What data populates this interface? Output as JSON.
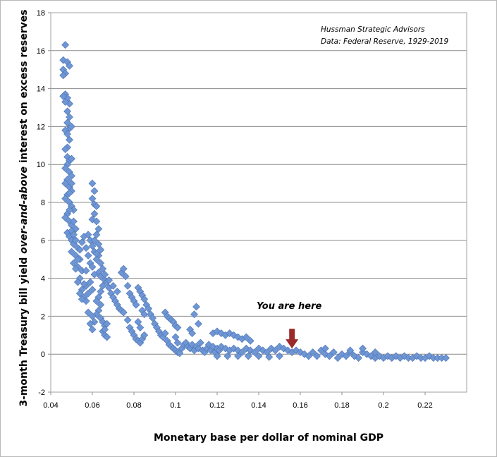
{
  "chart_data": {
    "type": "scatter",
    "source_lines": [
      "Hussman  Strategic Advisors",
      "Data: Federal Reserve,  1929-2019"
    ],
    "xlabel": "Monetary base per dollar of nominal GDP",
    "ylabel_parts": [
      "3-month Treasury bill yield ",
      "over-and-above",
      " interest on excess reserves"
    ],
    "xlim": [
      0.04,
      0.24
    ],
    "ylim": [
      -2,
      18
    ],
    "x_ticks": [
      "0.04",
      "0.06",
      "0.08",
      "0.1",
      "0.12",
      "0.14",
      "0.16",
      "0.18",
      "0.2",
      "0.22"
    ],
    "y_ticks": [
      "-2",
      "0",
      "2",
      "4",
      "6",
      "8",
      "10",
      "12",
      "14",
      "16",
      "18"
    ],
    "grid": "horizontal",
    "marker_color": "#6f96d4",
    "marker_stroke": "#4a72b5",
    "annotation": {
      "text": "You are here",
      "arrow_color": "#9c2a2a",
      "x": 0.156,
      "y": 0.15
    },
    "points": [
      [
        0.047,
        16.3
      ],
      [
        0.046,
        15.5
      ],
      [
        0.048,
        15.4
      ],
      [
        0.049,
        15.2
      ],
      [
        0.046,
        15.0
      ],
      [
        0.047,
        14.8
      ],
      [
        0.046,
        14.7
      ],
      [
        0.047,
        13.7
      ],
      [
        0.048,
        13.5
      ],
      [
        0.046,
        13.6
      ],
      [
        0.049,
        13.2
      ],
      [
        0.047,
        13.3
      ],
      [
        0.048,
        12.8
      ],
      [
        0.049,
        12.5
      ],
      [
        0.048,
        12.2
      ],
      [
        0.049,
        11.9
      ],
      [
        0.047,
        11.8
      ],
      [
        0.05,
        12.0
      ],
      [
        0.048,
        11.6
      ],
      [
        0.049,
        11.3
      ],
      [
        0.048,
        10.9
      ],
      [
        0.047,
        10.8
      ],
      [
        0.048,
        10.4
      ],
      [
        0.049,
        10.2
      ],
      [
        0.05,
        10.3
      ],
      [
        0.048,
        10.0
      ],
      [
        0.047,
        9.8
      ],
      [
        0.049,
        9.6
      ],
      [
        0.05,
        9.4
      ],
      [
        0.048,
        9.2
      ],
      [
        0.047,
        9.0
      ],
      [
        0.049,
        8.8
      ],
      [
        0.05,
        8.6
      ],
      [
        0.048,
        8.4
      ],
      [
        0.047,
        8.2
      ],
      [
        0.049,
        8.0
      ],
      [
        0.05,
        7.8
      ],
      [
        0.051,
        7.6
      ],
      [
        0.048,
        7.4
      ],
      [
        0.047,
        7.2
      ],
      [
        0.049,
        7.0
      ],
      [
        0.05,
        6.8
      ],
      [
        0.052,
        6.6
      ],
      [
        0.048,
        6.4
      ],
      [
        0.049,
        6.2
      ],
      [
        0.05,
        6.0
      ],
      [
        0.051,
        5.8
      ],
      [
        0.053,
        5.6
      ],
      [
        0.05,
        5.4
      ],
      [
        0.052,
        5.2
      ],
      [
        0.054,
        5.0
      ],
      [
        0.051,
        4.8
      ],
      [
        0.053,
        4.6
      ],
      [
        0.055,
        4.4
      ],
      [
        0.054,
        4.0
      ],
      [
        0.053,
        3.8
      ],
      [
        0.055,
        3.4
      ],
      [
        0.054,
        3.2
      ],
      [
        0.056,
        3.0
      ],
      [
        0.057,
        2.8
      ],
      [
        0.055,
        2.9
      ],
      [
        0.058,
        3.2
      ],
      [
        0.057,
        3.6
      ],
      [
        0.049,
        8.5
      ],
      [
        0.05,
        9.0
      ],
      [
        0.049,
        7.6
      ],
      [
        0.051,
        7.0
      ],
      [
        0.05,
        6.5
      ],
      [
        0.052,
        6.0
      ],
      [
        0.051,
        6.3
      ],
      [
        0.053,
        5.0
      ],
      [
        0.052,
        4.5
      ],
      [
        0.056,
        3.7
      ],
      [
        0.054,
        5.5
      ],
      [
        0.055,
        5.9
      ],
      [
        0.056,
        6.2
      ],
      [
        0.057,
        5.6
      ],
      [
        0.058,
        5.2
      ],
      [
        0.059,
        4.8
      ],
      [
        0.057,
        4.4
      ],
      [
        0.058,
        6.3
      ],
      [
        0.059,
        6.0
      ],
      [
        0.06,
        5.7
      ],
      [
        0.061,
        5.4
      ],
      [
        0.06,
        9.0
      ],
      [
        0.061,
        8.6
      ],
      [
        0.06,
        8.2
      ],
      [
        0.061,
        7.9
      ],
      [
        0.062,
        7.8
      ],
      [
        0.061,
        7.4
      ],
      [
        0.06,
        7.1
      ],
      [
        0.062,
        7.0
      ],
      [
        0.063,
        6.6
      ],
      [
        0.062,
        6.3
      ],
      [
        0.061,
        6.0
      ],
      [
        0.063,
        5.8
      ],
      [
        0.064,
        5.5
      ],
      [
        0.063,
        5.2
      ],
      [
        0.062,
        5.0
      ],
      [
        0.064,
        4.8
      ],
      [
        0.065,
        4.5
      ],
      [
        0.063,
        4.3
      ],
      [
        0.064,
        4.1
      ],
      [
        0.066,
        3.9
      ],
      [
        0.065,
        3.6
      ],
      [
        0.064,
        3.3
      ],
      [
        0.063,
        3.0
      ],
      [
        0.062,
        2.8
      ],
      [
        0.064,
        2.6
      ],
      [
        0.063,
        2.3
      ],
      [
        0.062,
        2.1
      ],
      [
        0.064,
        1.9
      ],
      [
        0.065,
        1.7
      ],
      [
        0.066,
        1.5
      ],
      [
        0.065,
        1.2
      ],
      [
        0.066,
        1.0
      ],
      [
        0.067,
        0.9
      ],
      [
        0.066,
        1.3
      ],
      [
        0.067,
        1.6
      ],
      [
        0.06,
        3.4
      ],
      [
        0.059,
        3.8
      ],
      [
        0.061,
        4.2
      ],
      [
        0.06,
        4.6
      ],
      [
        0.062,
        5.3
      ],
      [
        0.06,
        2.0
      ],
      [
        0.061,
        1.7
      ],
      [
        0.06,
        1.3
      ],
      [
        0.059,
        1.6
      ],
      [
        0.058,
        2.2
      ],
      [
        0.066,
        4.2
      ],
      [
        0.067,
        3.8
      ],
      [
        0.068,
        3.5
      ],
      [
        0.069,
        3.2
      ],
      [
        0.07,
        3.0
      ],
      [
        0.071,
        2.8
      ],
      [
        0.072,
        2.6
      ],
      [
        0.073,
        2.4
      ],
      [
        0.074,
        2.3
      ],
      [
        0.075,
        2.2
      ],
      [
        0.068,
        3.9
      ],
      [
        0.07,
        3.6
      ],
      [
        0.072,
        3.3
      ],
      [
        0.074,
        4.3
      ],
      [
        0.075,
        4.5
      ],
      [
        0.076,
        4.1
      ],
      [
        0.077,
        3.6
      ],
      [
        0.078,
        3.2
      ],
      [
        0.079,
        3.0
      ],
      [
        0.08,
        2.8
      ],
      [
        0.081,
        2.6
      ],
      [
        0.082,
        3.5
      ],
      [
        0.083,
        3.3
      ],
      [
        0.084,
        3.1
      ],
      [
        0.085,
        2.9
      ],
      [
        0.086,
        2.6
      ],
      [
        0.084,
        2.3
      ],
      [
        0.085,
        2.1
      ],
      [
        0.077,
        1.8
      ],
      [
        0.078,
        1.4
      ],
      [
        0.079,
        1.2
      ],
      [
        0.08,
        1.0
      ],
      [
        0.081,
        0.8
      ],
      [
        0.082,
        0.7
      ],
      [
        0.083,
        0.6
      ],
      [
        0.084,
        0.8
      ],
      [
        0.085,
        1.0
      ],
      [
        0.083,
        1.4
      ],
      [
        0.082,
        1.7
      ],
      [
        0.087,
        2.4
      ],
      [
        0.088,
        2.1
      ],
      [
        0.089,
        1.9
      ],
      [
        0.09,
        1.6
      ],
      [
        0.091,
        1.4
      ],
      [
        0.092,
        1.2
      ],
      [
        0.093,
        1.0
      ],
      [
        0.094,
        0.9
      ],
      [
        0.095,
        2.2
      ],
      [
        0.096,
        2.0
      ],
      [
        0.097,
        1.9
      ],
      [
        0.098,
        1.8
      ],
      [
        0.099,
        1.7
      ],
      [
        0.1,
        1.5
      ],
      [
        0.101,
        1.4
      ],
      [
        0.096,
        0.7
      ],
      [
        0.097,
        0.5
      ],
      [
        0.098,
        0.4
      ],
      [
        0.099,
        0.3
      ],
      [
        0.1,
        0.2
      ],
      [
        0.101,
        0.1
      ],
      [
        0.102,
        0.05
      ],
      [
        0.1,
        0.9
      ],
      [
        0.101,
        0.6
      ],
      [
        0.095,
        1.1
      ],
      [
        0.103,
        0.3
      ],
      [
        0.104,
        0.5
      ],
      [
        0.105,
        0.6
      ],
      [
        0.106,
        0.4
      ],
      [
        0.107,
        0.3
      ],
      [
        0.108,
        0.5
      ],
      [
        0.109,
        0.2
      ],
      [
        0.11,
        0.4
      ],
      [
        0.111,
        0.3
      ],
      [
        0.107,
        1.3
      ],
      [
        0.108,
        1.1
      ],
      [
        0.109,
        2.1
      ],
      [
        0.11,
        2.5
      ],
      [
        0.111,
        1.6
      ],
      [
        0.112,
        0.6
      ],
      [
        0.113,
        0.2
      ],
      [
        0.114,
        0.1
      ],
      [
        0.115,
        0.3
      ],
      [
        0.116,
        0.5
      ],
      [
        0.117,
        0.2
      ],
      [
        0.118,
        0.4
      ],
      [
        0.119,
        0.1
      ],
      [
        0.12,
        0.3
      ],
      [
        0.121,
        0.2
      ],
      [
        0.118,
        1.1
      ],
      [
        0.12,
        1.2
      ],
      [
        0.122,
        1.1
      ],
      [
        0.124,
        1.0
      ],
      [
        0.126,
        1.1
      ],
      [
        0.128,
        1.0
      ],
      [
        0.13,
        0.9
      ],
      [
        0.132,
        0.8
      ],
      [
        0.134,
        0.9
      ],
      [
        0.136,
        0.7
      ],
      [
        0.122,
        0.4
      ],
      [
        0.124,
        0.3
      ],
      [
        0.126,
        0.2
      ],
      [
        0.128,
        0.3
      ],
      [
        0.13,
        0.2
      ],
      [
        0.132,
        0.1
      ],
      [
        0.134,
        0.3
      ],
      [
        0.136,
        0.2
      ],
      [
        0.138,
        0.1
      ],
      [
        0.14,
        0.3
      ],
      [
        0.142,
        0.2
      ],
      [
        0.144,
        0.1
      ],
      [
        0.146,
        0.3
      ],
      [
        0.148,
        0.2
      ],
      [
        0.15,
        0.4
      ],
      [
        0.152,
        0.3
      ],
      [
        0.154,
        0.2
      ],
      [
        0.156,
        0.1
      ],
      [
        0.12,
        -0.1
      ],
      [
        0.125,
        -0.1
      ],
      [
        0.13,
        -0.1
      ],
      [
        0.135,
        -0.1
      ],
      [
        0.14,
        -0.1
      ],
      [
        0.145,
        -0.15
      ],
      [
        0.15,
        -0.1
      ],
      [
        0.158,
        0.2
      ],
      [
        0.16,
        0.1
      ],
      [
        0.162,
        0.0
      ],
      [
        0.164,
        -0.1
      ],
      [
        0.166,
        0.1
      ],
      [
        0.168,
        -0.1
      ],
      [
        0.17,
        0.2
      ],
      [
        0.172,
        0.0
      ],
      [
        0.174,
        -0.1
      ],
      [
        0.176,
        0.1
      ],
      [
        0.178,
        -0.2
      ],
      [
        0.18,
        0.0
      ],
      [
        0.182,
        -0.1
      ],
      [
        0.184,
        0.1
      ],
      [
        0.186,
        -0.1
      ],
      [
        0.188,
        -0.2
      ],
      [
        0.19,
        0.1
      ],
      [
        0.192,
        0.0
      ],
      [
        0.194,
        -0.1
      ],
      [
        0.196,
        -0.2
      ],
      [
        0.198,
        -0.1
      ],
      [
        0.2,
        -0.2
      ],
      [
        0.202,
        -0.1
      ],
      [
        0.204,
        -0.2
      ],
      [
        0.206,
        -0.1
      ],
      [
        0.208,
        -0.2
      ],
      [
        0.21,
        -0.1
      ],
      [
        0.212,
        -0.2
      ],
      [
        0.214,
        -0.2
      ],
      [
        0.216,
        -0.1
      ],
      [
        0.218,
        -0.2
      ],
      [
        0.22,
        -0.2
      ],
      [
        0.222,
        -0.1
      ],
      [
        0.224,
        -0.2
      ],
      [
        0.226,
        -0.2
      ],
      [
        0.228,
        -0.2
      ],
      [
        0.23,
        -0.2
      ],
      [
        0.172,
        0.3
      ],
      [
        0.19,
        0.3
      ],
      [
        0.196,
        0.1
      ],
      [
        0.184,
        0.2
      ]
    ]
  }
}
